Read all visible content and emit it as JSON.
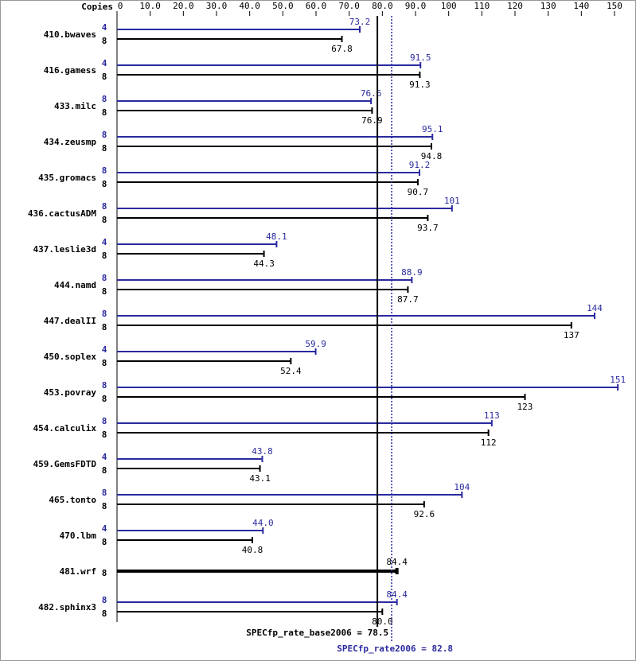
{
  "chart_data": {
    "type": "bar",
    "orientation": "horizontal",
    "axis_label": "Copies",
    "categories": [
      "410.bwaves",
      "416.gamess",
      "433.milc",
      "434.zeusmp",
      "435.gromacs",
      "436.cactusADM",
      "437.leslie3d",
      "444.namd",
      "447.dealII",
      "450.soplex",
      "453.povray",
      "454.calculix",
      "459.GemsFDTD",
      "465.tonto",
      "470.lbm",
      "481.wrf",
      "482.sphinx3"
    ],
    "series": [
      {
        "color": "#2a2aa0",
        "copies": [
          4,
          4,
          8,
          8,
          8,
          8,
          4,
          8,
          8,
          4,
          8,
          8,
          4,
          8,
          4,
          null,
          8
        ],
        "values": [
          73.2,
          91.5,
          76.6,
          95.1,
          91.2,
          101,
          48.1,
          88.9,
          144,
          59.9,
          151,
          113,
          43.8,
          104,
          44.0,
          null,
          84.4
        ],
        "value_labels": [
          "73.2",
          "91.5",
          "76.6",
          "95.1",
          "91.2",
          "101",
          "48.1",
          "88.9",
          "144",
          "59.9",
          "151",
          "113",
          "43.8",
          "104",
          "44.0",
          null,
          "84.4"
        ]
      },
      {
        "color": "#000000",
        "copies": [
          8,
          8,
          8,
          8,
          8,
          8,
          8,
          8,
          8,
          8,
          8,
          8,
          8,
          8,
          8,
          8,
          8
        ],
        "values": [
          67.8,
          91.3,
          76.9,
          94.8,
          90.7,
          93.7,
          44.3,
          87.7,
          137,
          52.4,
          123,
          112,
          43.1,
          92.6,
          40.8,
          84.4,
          80.0
        ],
        "value_labels": [
          "67.8",
          "91.3",
          "76.9",
          "94.8",
          "90.7",
          "93.7",
          "44.3",
          "87.7",
          "137",
          "52.4",
          "123",
          "112",
          "43.1",
          "92.6",
          "40.8",
          "84.4",
          "80.0"
        ]
      }
    ],
    "xlim": [
      0,
      150
    ],
    "xticks": [
      0,
      {
        "value": 10,
        "label": "10.0"
      },
      {
        "value": 20,
        "label": "20.0"
      },
      {
        "value": 30,
        "label": "30.0"
      },
      {
        "value": 40,
        "label": "40.0"
      },
      {
        "value": 50,
        "label": "50.0"
      },
      {
        "value": 60,
        "label": "60.0"
      },
      {
        "value": 70,
        "label": "70.0"
      },
      {
        "value": 80,
        "label": "80.0"
      },
      {
        "value": 90,
        "label": "90.0"
      },
      100,
      110,
      120,
      130,
      140,
      150
    ],
    "references": [
      {
        "value": 78.5,
        "label": "SPECfp_rate_base2006 = 78.5",
        "color": "#000000",
        "style": "solid"
      },
      {
        "value": 82.8,
        "label": "SPECfp_rate2006 = 82.8",
        "color": "#2a2aa0",
        "style": "dotted"
      }
    ]
  }
}
